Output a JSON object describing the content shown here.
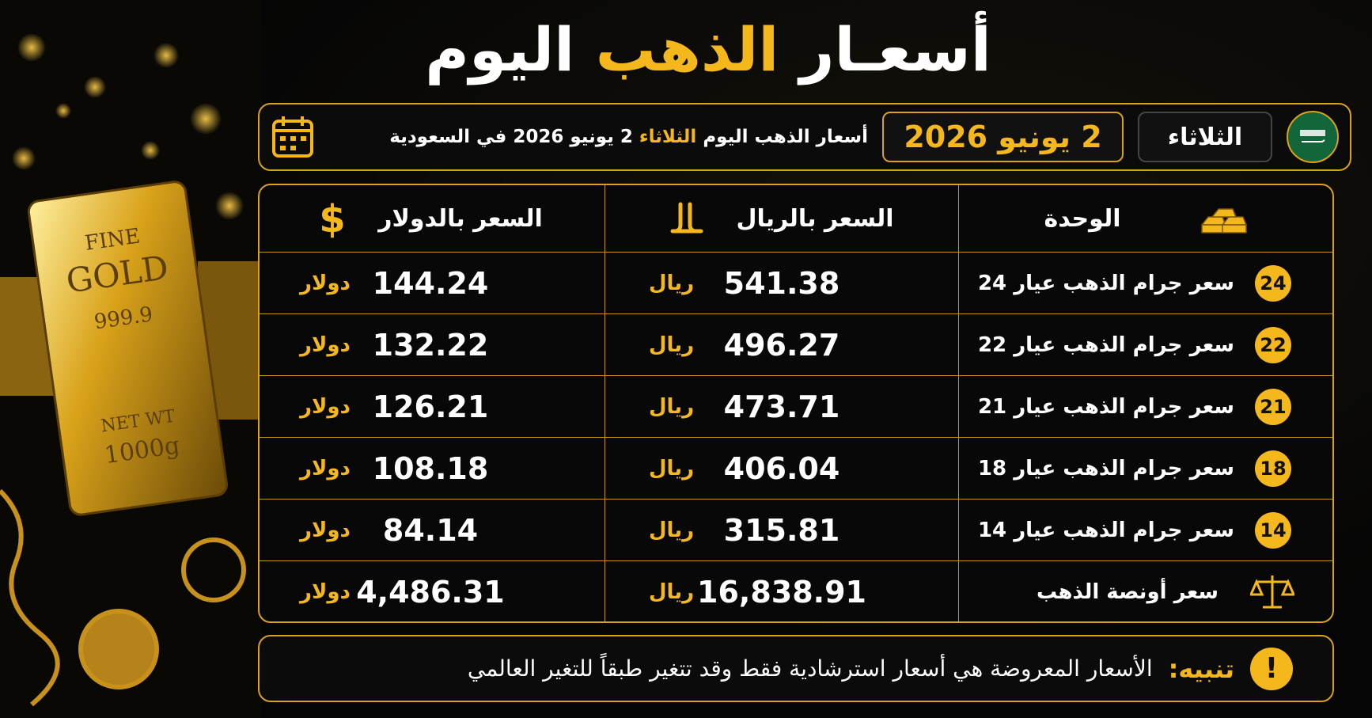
{
  "title": {
    "part1": "أسعـار",
    "highlight": "الذهب",
    "part2": "اليوم"
  },
  "header": {
    "day": "الثلاثاء",
    "date": "2 يونيو 2026",
    "description_start": "أسعار الذهب اليوم",
    "description_day": "الثلاثاء",
    "description_end": "2 يونيو 2026 في السعودية"
  },
  "image_text": {
    "line1": "FINE",
    "line2": "GOLD",
    "line3": "999.9",
    "line4": "NET WT",
    "line5": "1000g"
  },
  "table": {
    "columns": [
      "الوحدة",
      "السعر بالريال",
      "السعر بالدولار"
    ],
    "rows": [
      {
        "badge": "24",
        "label": "سعر جرام الذهب عيار 24",
        "riyal": "541.38",
        "riyal_unit": "ريال",
        "usd": "144.24",
        "usd_unit": "دولار"
      },
      {
        "badge": "22",
        "label": "سعر جرام الذهب عيار 22",
        "riyal": "496.27",
        "riyal_unit": "ريال",
        "usd": "132.22",
        "usd_unit": "دولار"
      },
      {
        "badge": "21",
        "label": "سعر جرام الذهب عيار 21",
        "riyal": "473.71",
        "riyal_unit": "ريال",
        "usd": "126.21",
        "usd_unit": "دولار"
      },
      {
        "badge": "18",
        "label": "سعر جرام الذهب عيار 18",
        "riyal": "406.04",
        "riyal_unit": "ريال",
        "usd": "108.18",
        "usd_unit": "دولار"
      },
      {
        "badge": "14",
        "label": "سعر جرام الذهب عيار 14",
        "riyal": "315.81",
        "riyal_unit": "ريال",
        "usd": "84.14",
        "usd_unit": "دولار"
      },
      {
        "label": "سعر أونصة الذهب",
        "riyal": "16,838.91",
        "riyal_unit": "ريال",
        "usd": "4,486.31",
        "usd_unit": "دولار"
      }
    ]
  },
  "note": {
    "label": "تنبيه:",
    "text": "الأسعار المعروضة هي أسعار استرشادية فقط وقد تتغير طبقاً للتغير العالمي"
  }
}
